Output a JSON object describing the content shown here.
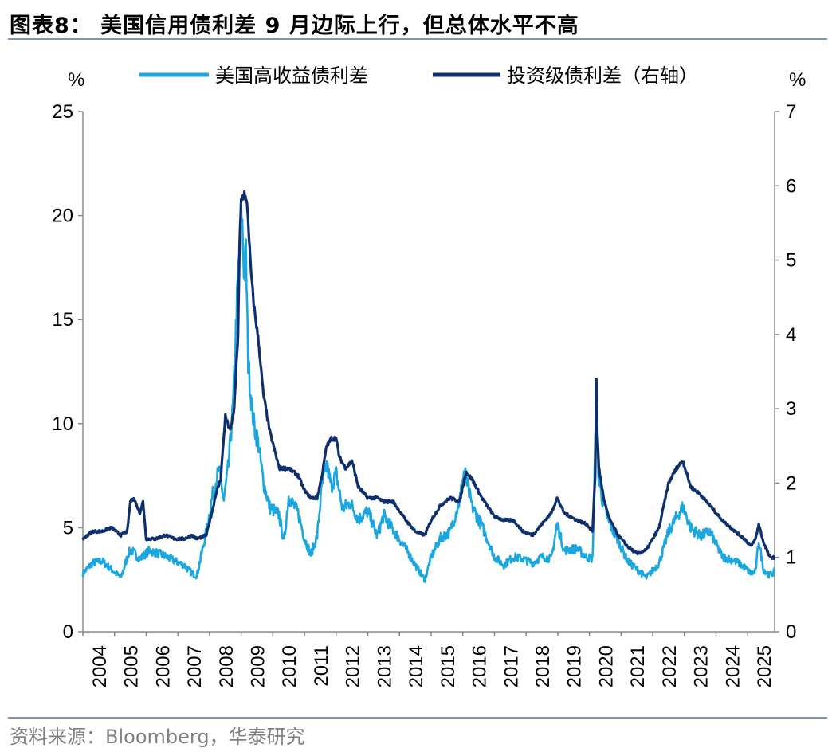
{
  "figure": {
    "title": "图表8：  美国信用债利差 9 月边际上行，但总体水平不高",
    "source": "资料来源：Bloomberg，华泰研究"
  },
  "colors": {
    "high_yield": "#1aa7e0",
    "investment_grade": "#0e2f6e",
    "axis": "#8c8c8c",
    "rule": "#7f97ad"
  },
  "chart_data": {
    "type": "line",
    "left_axis": {
      "unit": "%",
      "range": [
        0,
        25
      ],
      "ticks": [
        "0",
        "5",
        "10",
        "15",
        "20",
        "25"
      ]
    },
    "right_axis": {
      "unit": "%",
      "range": [
        0,
        7
      ],
      "ticks": [
        "0",
        "1",
        "2",
        "3",
        "4",
        "5",
        "6",
        "7"
      ]
    },
    "x_axis": {
      "range": [
        2004.0,
        2025.85
      ],
      "ticks": [
        "2004",
        "2005",
        "2006",
        "2007",
        "2008",
        "2009",
        "2010",
        "2011",
        "2012",
        "2013",
        "2014",
        "2015",
        "2016",
        "2017",
        "2018",
        "2019",
        "2020",
        "2021",
        "2022",
        "2023",
        "2024",
        "2025"
      ]
    },
    "legend": {
      "position": "top"
    },
    "series": [
      {
        "name": "美国高收益债利差",
        "axis": "left",
        "x": [
          2004.0,
          2004.3,
          2004.6,
          2004.9,
          2005.2,
          2005.45,
          2005.55,
          2005.8,
          2006.1,
          2006.5,
          2006.9,
          2007.2,
          2007.45,
          2007.6,
          2007.9,
          2008.1,
          2008.3,
          2008.45,
          2008.6,
          2008.75,
          2008.85,
          2008.95,
          2009.02,
          2009.1,
          2009.15,
          2009.22,
          2009.3,
          2009.4,
          2009.55,
          2009.7,
          2009.9,
          2010.2,
          2010.35,
          2010.5,
          2010.8,
          2011.0,
          2011.2,
          2011.4,
          2011.55,
          2011.7,
          2011.85,
          2012.0,
          2012.2,
          2012.45,
          2012.7,
          2013.0,
          2013.3,
          2013.5,
          2013.8,
          2014.2,
          2014.5,
          2014.8,
          2015.0,
          2015.3,
          2015.6,
          2015.9,
          2016.05,
          2016.15,
          2016.3,
          2016.6,
          2017.0,
          2017.3,
          2017.6,
          2017.9,
          2018.2,
          2018.5,
          2018.8,
          2018.98,
          2019.2,
          2019.6,
          2019.9,
          2020.1,
          2020.18,
          2020.22,
          2020.28,
          2020.4,
          2020.6,
          2020.9,
          2021.2,
          2021.5,
          2021.8,
          2022.2,
          2022.5,
          2022.75,
          2022.95,
          2023.2,
          2023.5,
          2023.8,
          2024.2,
          2024.6,
          2024.9,
          2025.1,
          2025.25,
          2025.35,
          2025.5,
          2025.7,
          2025.85
        ],
        "values": [
          2.8,
          3.3,
          3.4,
          3.0,
          2.6,
          3.8,
          3.9,
          3.5,
          3.9,
          3.7,
          3.4,
          3.2,
          2.8,
          2.7,
          4.8,
          6.6,
          7.8,
          6.3,
          8.0,
          11.0,
          15.2,
          18.5,
          20.0,
          17.0,
          18.2,
          13.0,
          11.5,
          10.0,
          9.0,
          7.2,
          6.0,
          5.6,
          4.3,
          6.5,
          5.7,
          4.5,
          3.7,
          4.6,
          7.0,
          8.0,
          7.0,
          7.6,
          5.9,
          6.2,
          5.4,
          5.8,
          4.6,
          5.6,
          4.9,
          4.0,
          3.2,
          2.5,
          3.6,
          4.5,
          4.8,
          6.3,
          7.8,
          7.0,
          6.0,
          5.1,
          3.6,
          3.2,
          3.6,
          3.5,
          3.3,
          3.6,
          3.5,
          5.2,
          3.9,
          4.0,
          3.6,
          3.5,
          8.7,
          10.8,
          7.5,
          6.4,
          5.3,
          4.4,
          3.4,
          3.0,
          2.6,
          3.3,
          4.8,
          5.5,
          6.0,
          5.0,
          4.6,
          4.8,
          3.6,
          3.4,
          3.1,
          2.8,
          2.9,
          4.4,
          3.0,
          2.7,
          2.9
        ]
      },
      {
        "name": "投资级债利差（右轴）",
        "axis": "right",
        "x": [
          2004.0,
          2004.3,
          2004.6,
          2004.9,
          2005.2,
          2005.4,
          2005.5,
          2005.6,
          2005.8,
          2005.9,
          2006.0,
          2006.3,
          2006.6,
          2006.9,
          2007.2,
          2007.45,
          2007.6,
          2007.9,
          2008.1,
          2008.2,
          2008.35,
          2008.5,
          2008.65,
          2008.78,
          2008.9,
          2008.95,
          2009.0,
          2009.1,
          2009.2,
          2009.3,
          2009.4,
          2009.55,
          2009.7,
          2009.9,
          2010.2,
          2010.5,
          2010.8,
          2011.0,
          2011.2,
          2011.4,
          2011.55,
          2011.7,
          2011.85,
          2012.0,
          2012.1,
          2012.3,
          2012.5,
          2012.7,
          2013.0,
          2013.3,
          2013.5,
          2013.8,
          2014.2,
          2014.5,
          2014.8,
          2015.0,
          2015.3,
          2015.6,
          2015.9,
          2016.1,
          2016.3,
          2016.6,
          2017.0,
          2017.3,
          2017.6,
          2017.9,
          2018.2,
          2018.5,
          2018.8,
          2018.98,
          2019.2,
          2019.6,
          2019.9,
          2020.1,
          2020.18,
          2020.22,
          2020.25,
          2020.3,
          2020.45,
          2020.6,
          2020.9,
          2021.2,
          2021.5,
          2021.8,
          2022.2,
          2022.5,
          2022.75,
          2022.95,
          2023.2,
          2023.5,
          2023.8,
          2024.2,
          2024.6,
          2024.9,
          2025.1,
          2025.25,
          2025.35,
          2025.5,
          2025.7,
          2025.85
        ],
        "values": [
          1.25,
          1.35,
          1.35,
          1.4,
          1.3,
          1.35,
          1.75,
          1.8,
          1.6,
          1.75,
          1.25,
          1.25,
          1.3,
          1.25,
          1.25,
          1.3,
          1.25,
          1.3,
          1.65,
          1.85,
          2.05,
          2.9,
          2.7,
          3.0,
          4.0,
          5.2,
          5.8,
          5.9,
          5.7,
          4.9,
          4.4,
          3.9,
          3.2,
          2.7,
          2.2,
          2.2,
          2.1,
          1.9,
          1.8,
          1.8,
          2.1,
          2.5,
          2.6,
          2.6,
          2.35,
          2.2,
          2.3,
          1.95,
          1.8,
          1.8,
          1.75,
          1.75,
          1.5,
          1.35,
          1.3,
          1.5,
          1.7,
          1.8,
          1.75,
          2.15,
          2.05,
          1.8,
          1.55,
          1.5,
          1.5,
          1.35,
          1.3,
          1.45,
          1.6,
          1.8,
          1.6,
          1.5,
          1.45,
          1.35,
          2.1,
          3.4,
          2.7,
          2.2,
          1.8,
          1.55,
          1.3,
          1.15,
          1.05,
          1.1,
          1.4,
          2.0,
          2.2,
          2.3,
          1.95,
          1.85,
          1.7,
          1.5,
          1.35,
          1.25,
          1.15,
          1.25,
          1.45,
          1.2,
          1.0,
          1.0
        ]
      }
    ]
  }
}
